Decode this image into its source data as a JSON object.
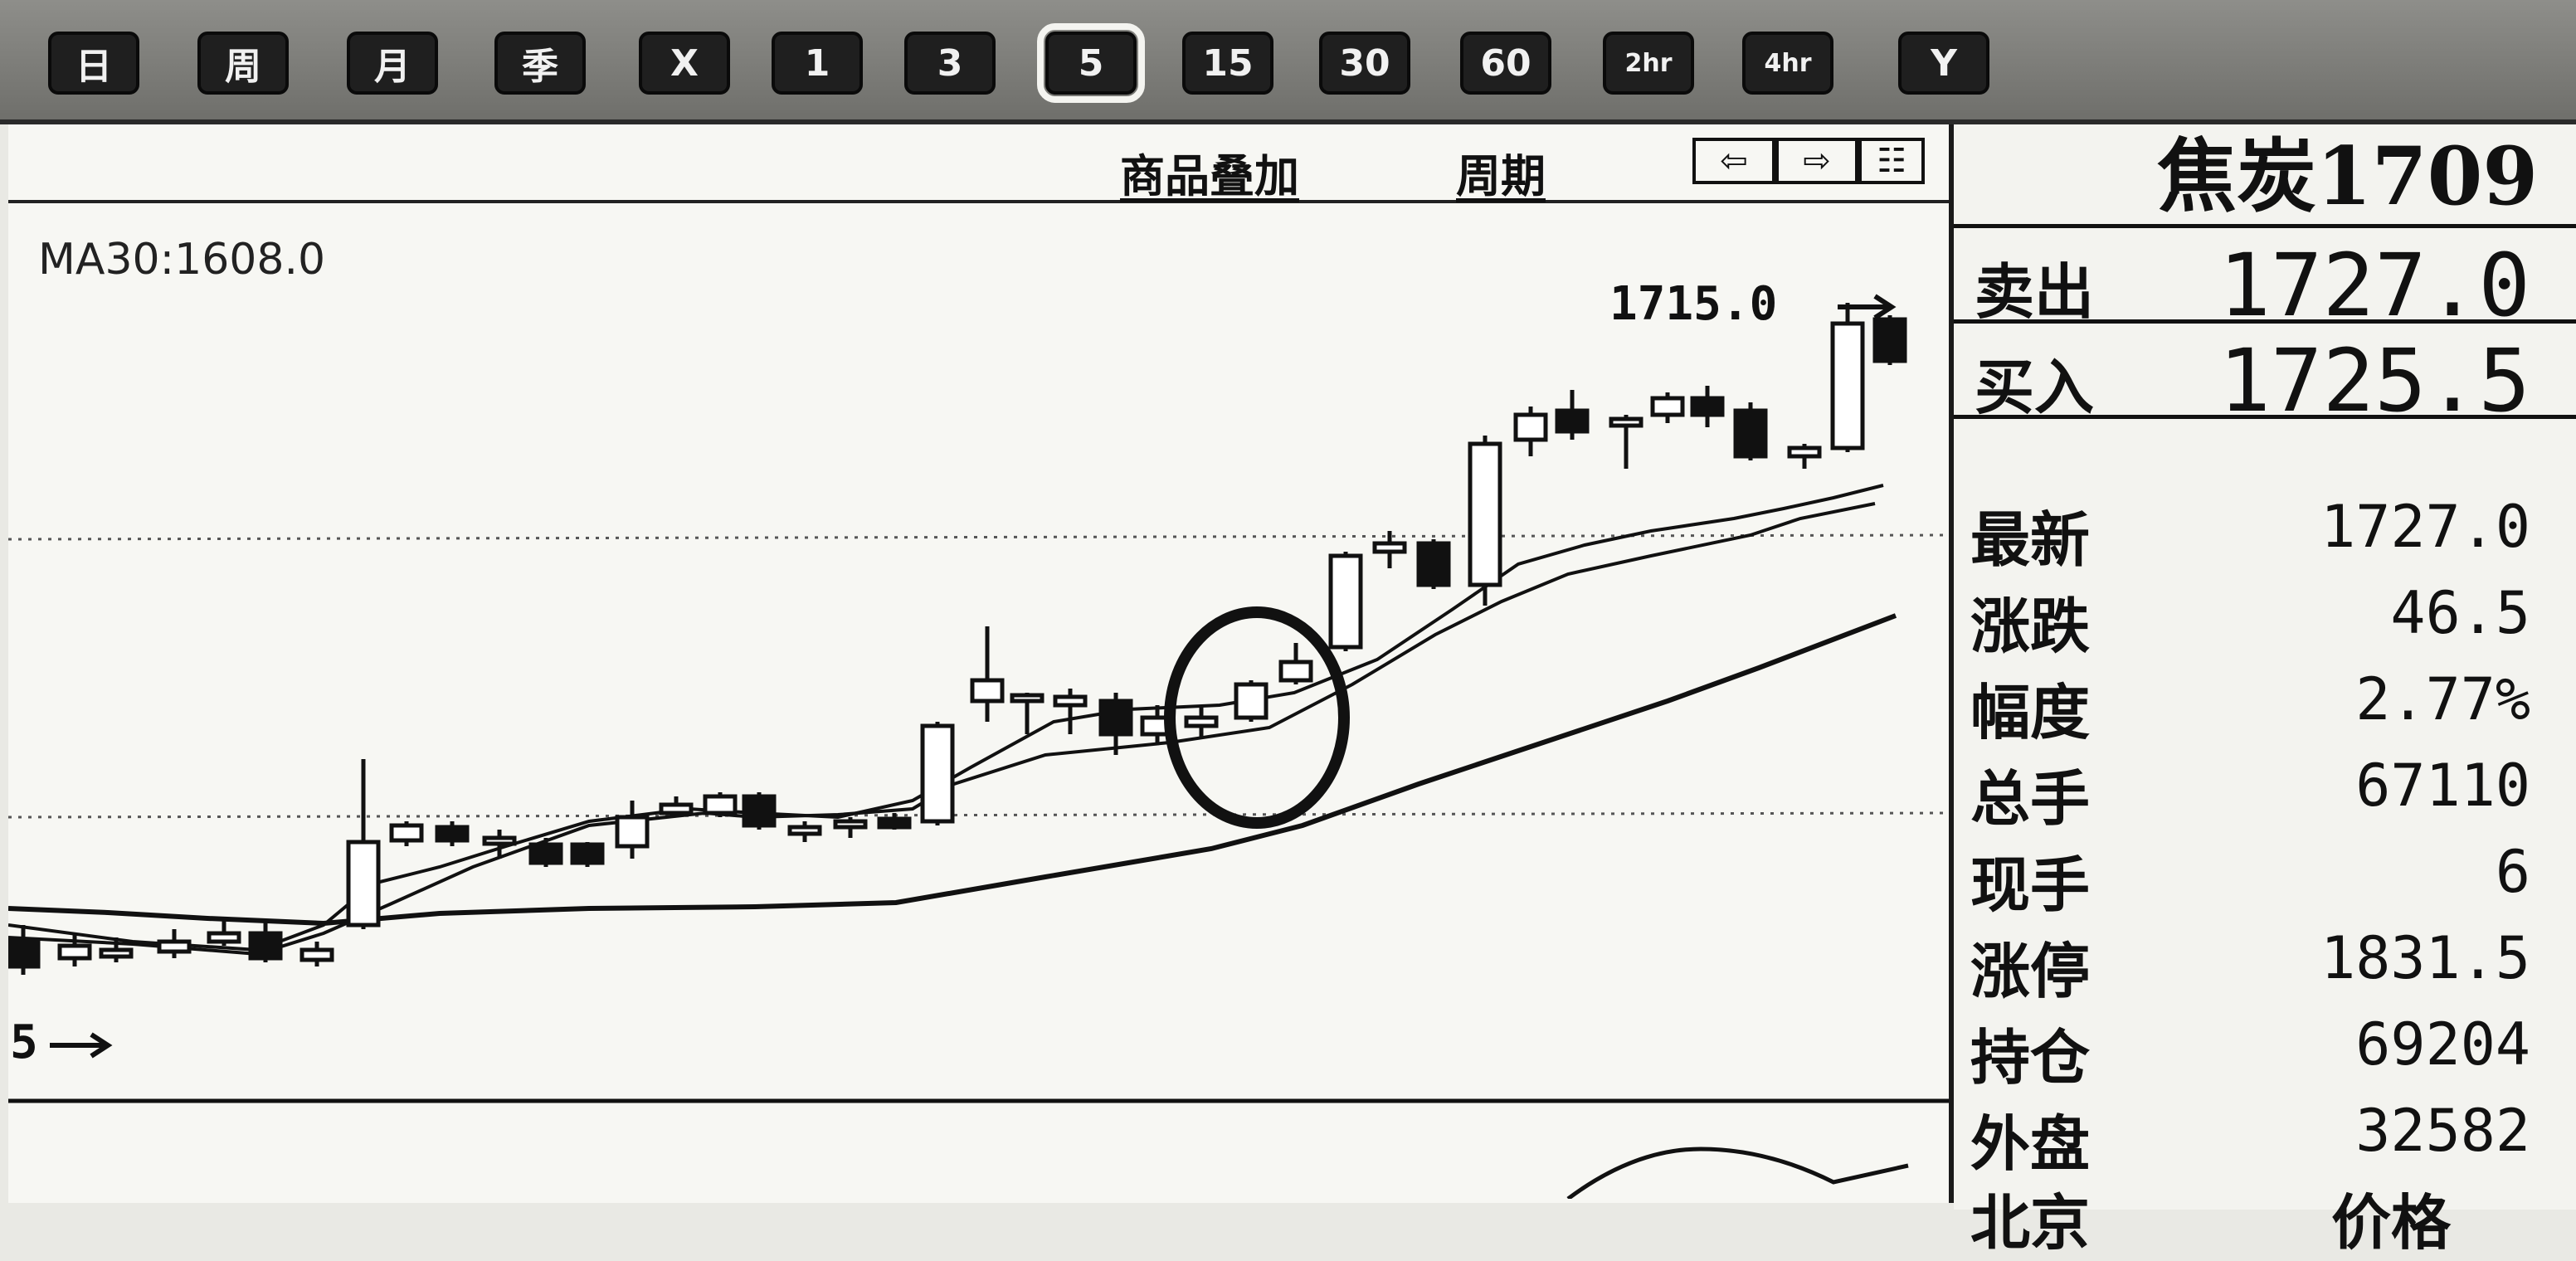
{
  "toolbar": {
    "periods": [
      "日",
      "周",
      "月",
      "季",
      "X",
      "1",
      "3",
      "5",
      "15",
      "30",
      "60",
      "2hr",
      "4hr",
      "Y"
    ],
    "active": "5"
  },
  "chart_header": {
    "overlay_label": "商品叠加",
    "period_label": "周期",
    "nav_left": "⇦",
    "nav_right": "⇨",
    "nav_layout": "☷"
  },
  "chart": {
    "ma_label": "MA30:1608.0",
    "high_label": "1715.0",
    "low_label": "5",
    "colors": {
      "candle_up": "#ffffff",
      "candle_down": "#111111",
      "line": "#111111",
      "grid": "#444444"
    }
  },
  "quote": {
    "title": "焦炭1709",
    "ask_label": "卖出",
    "ask_value": "1727.0",
    "bid_label": "买入",
    "bid_value": "1725.5",
    "rows": [
      {
        "label": "最新",
        "value": "1727.0"
      },
      {
        "label": "涨跌",
        "value": "46.5"
      },
      {
        "label": "幅度",
        "value": "2.77%"
      },
      {
        "label": "总手",
        "value": "67110"
      },
      {
        "label": "现手",
        "value": "6"
      },
      {
        "label": "涨停",
        "value": "1831.5"
      },
      {
        "label": "持仓",
        "value": "69204"
      },
      {
        "label": "外盘",
        "value": "32582"
      }
    ],
    "cut_row_label": "北京",
    "cut_row_value": "价格"
  }
}
